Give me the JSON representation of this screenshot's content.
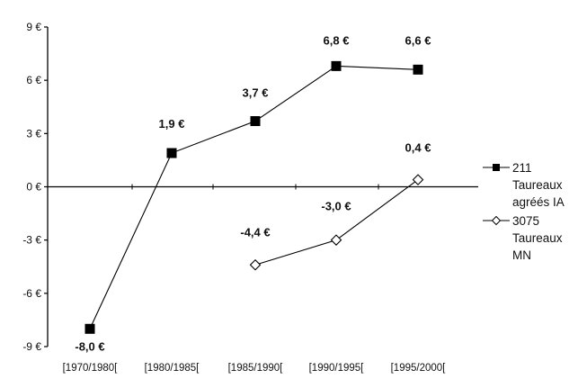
{
  "chart_data": {
    "type": "line",
    "title": "",
    "xlabel": "",
    "ylabel": "",
    "categories": [
      "[1970/1980[",
      "[1980/1985[",
      "[1985/1990[",
      "[1990/1995[",
      "[1995/2000["
    ],
    "ylim": [
      -9,
      9
    ],
    "yticks": [
      9,
      6,
      3,
      0,
      -3,
      -6,
      -9
    ],
    "ytick_labels": [
      "9 €",
      "6 €",
      "3 €",
      "0 €",
      "-3 €",
      "-6 €",
      "-9 €"
    ],
    "grid": false,
    "legend_position": "right",
    "series": [
      {
        "name": "211 Taureaux agréés IA",
        "legend_lines": [
          "211",
          "Taureaux",
          "agréés IA"
        ],
        "marker": "filled-square",
        "color": "#000000",
        "values": [
          -8.0,
          1.9,
          3.7,
          6.8,
          6.6
        ],
        "labels": [
          "-8,0 €",
          "1,9 €",
          "3,7 €",
          "6,8 €",
          "6,6 €"
        ]
      },
      {
        "name": "3075 Taureaux MN",
        "legend_lines": [
          "3075",
          "Taureaux",
          "MN"
        ],
        "marker": "open-diamond",
        "color": "#000000",
        "values": [
          null,
          null,
          -4.4,
          -3.0,
          0.4
        ],
        "labels": [
          "",
          "",
          "-4,4 €",
          "-3,0 €",
          "0,4 €"
        ]
      }
    ]
  }
}
